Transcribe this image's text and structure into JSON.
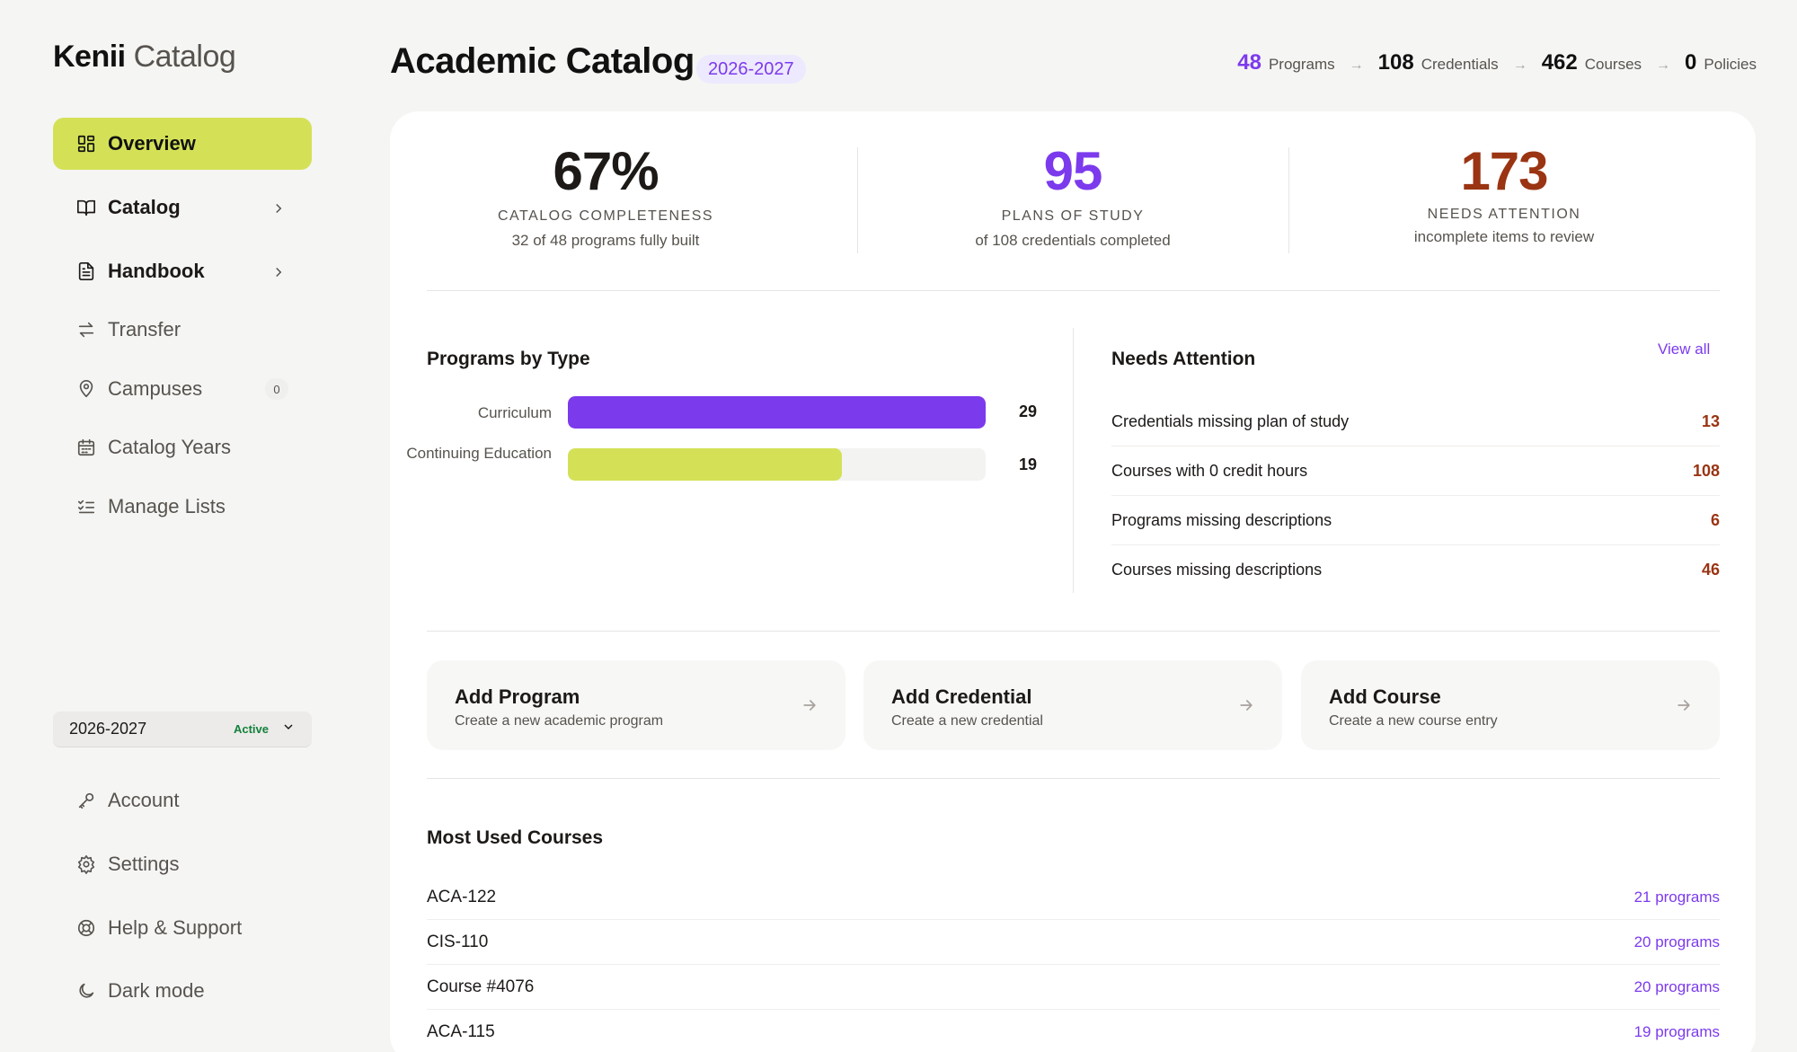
{
  "brand": {
    "name_bold": "Kenii",
    "name_light": "Catalog"
  },
  "sidebar": {
    "items": [
      {
        "label": "Overview",
        "icon": "grid-icon"
      },
      {
        "label": "Catalog",
        "icon": "book-icon"
      },
      {
        "label": "Handbook",
        "icon": "document-icon"
      },
      {
        "label": "Transfer",
        "icon": "transfer-icon"
      },
      {
        "label": "Campuses",
        "icon": "location-pin-icon",
        "count": "0"
      },
      {
        "label": "Catalog Years",
        "icon": "calendar-icon"
      },
      {
        "label": "Manage Lists",
        "icon": "checklist-icon"
      }
    ],
    "year_selector": {
      "value": "2026-2027",
      "status": "Active"
    },
    "bottom_items": [
      {
        "label": "Account",
        "icon": "key-icon"
      },
      {
        "label": "Settings",
        "icon": "gear-icon"
      },
      {
        "label": "Help & Support",
        "icon": "lifebuoy-icon"
      },
      {
        "label": "Dark mode",
        "icon": "moon-icon"
      }
    ]
  },
  "header": {
    "title": "Academic Catalog",
    "year_badge": "2026-2027",
    "summary": [
      {
        "value": "48",
        "label": "Programs"
      },
      {
        "value": "108",
        "label": "Credentials"
      },
      {
        "value": "462",
        "label": "Courses"
      },
      {
        "value": "0",
        "label": "Policies"
      }
    ]
  },
  "stats": [
    {
      "value": "67%",
      "caption": "CATALOG COMPLETENESS",
      "sub": "32 of 48 programs fully built",
      "color": "#1c1917"
    },
    {
      "value": "95",
      "caption": "PLANS OF STUDY",
      "sub": "of 108 credentials completed",
      "color": "#7c3aed"
    },
    {
      "value": "173",
      "caption": "NEEDS ATTENTION",
      "sub": "incomplete items to review",
      "color": "#9a3412"
    }
  ],
  "programs_by_type": {
    "title": "Programs by Type",
    "bars": [
      {
        "label": "Curriculum",
        "value": 29,
        "fraction": 1.0,
        "color": "#7c3aed"
      },
      {
        "label": "Continuing Education",
        "value": 19,
        "fraction": 0.655,
        "color": "#d4e157"
      }
    ]
  },
  "needs_attention": {
    "title": "Needs Attention",
    "view_all": "View all",
    "rows": [
      {
        "label": "Credentials missing plan of study",
        "value": "13"
      },
      {
        "label": "Courses with 0 credit hours",
        "value": "108"
      },
      {
        "label": "Programs missing descriptions",
        "value": "6"
      },
      {
        "label": "Courses missing descriptions",
        "value": "46"
      }
    ]
  },
  "actions": [
    {
      "title": "Add Program",
      "subtitle": "Create a new academic program"
    },
    {
      "title": "Add Credential",
      "subtitle": "Create a new credential"
    },
    {
      "title": "Add Course",
      "subtitle": "Create a new course entry"
    }
  ],
  "most_used_courses": {
    "title": "Most Used Courses",
    "rows": [
      {
        "course": "ACA-122",
        "count": "21 programs"
      },
      {
        "course": "CIS-110",
        "count": "20 programs"
      },
      {
        "course": "Course #4076",
        "count": "20 programs"
      },
      {
        "course": "ACA-115",
        "count": "19 programs"
      }
    ]
  },
  "colors": {
    "accent_purple": "#7c3aed",
    "accent_lime": "#d4e157",
    "attention": "#9a3412"
  }
}
